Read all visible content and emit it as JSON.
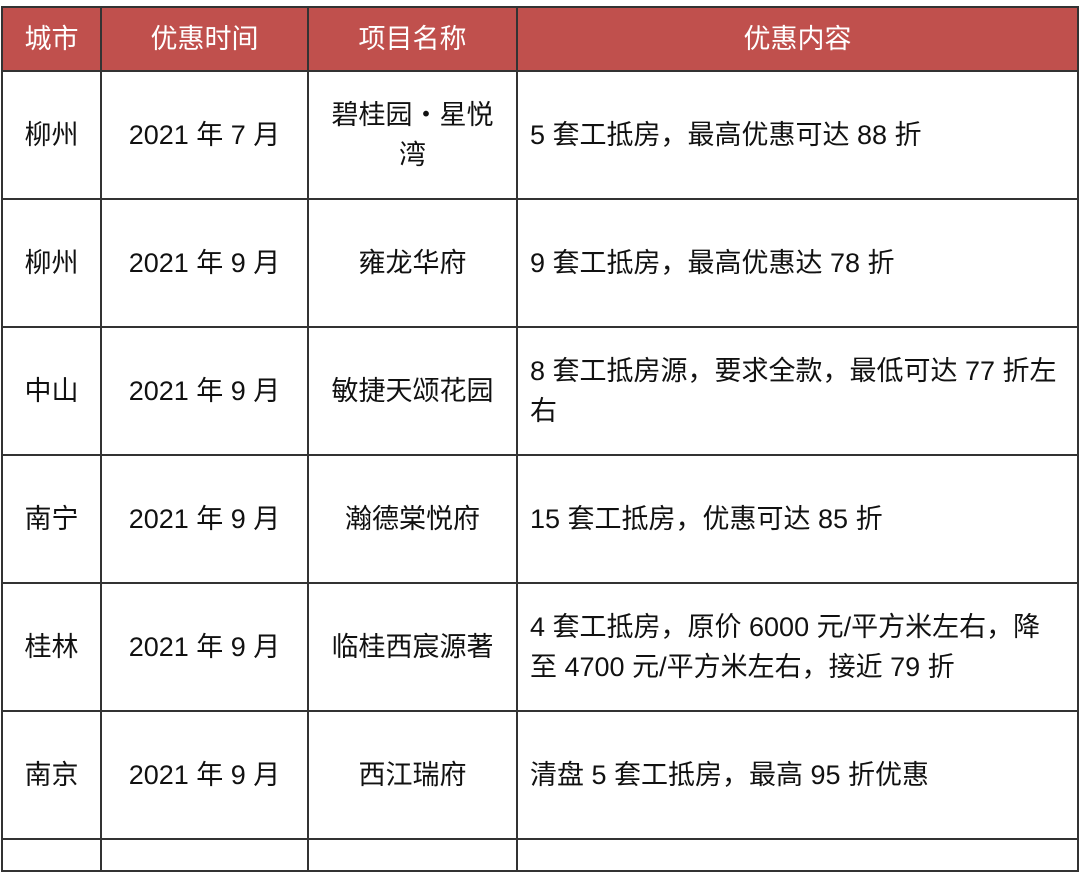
{
  "table": {
    "headers": [
      "城市",
      "优惠时间",
      "项目名称",
      "优惠内容"
    ],
    "header_color": "#c0504d",
    "rows": [
      {
        "city": "柳州",
        "time": "2021 年 7 月",
        "project": "碧桂园・星悦湾",
        "content": "5 套工抵房，最高优惠可达 88 折"
      },
      {
        "city": "柳州",
        "time": "2021 年 9 月",
        "project": "雍龙华府",
        "content": "9 套工抵房，最高优惠达 78 折"
      },
      {
        "city": "中山",
        "time": "2021 年 9 月",
        "project": "敏捷天颂花园",
        "content": "8 套工抵房源，要求全款，最低可达 77 折左右"
      },
      {
        "city": "南宁",
        "time": "2021 年 9 月",
        "project": "瀚德棠悦府",
        "content": "15 套工抵房，优惠可达 85 折"
      },
      {
        "city": "桂林",
        "time": "2021 年 9 月",
        "project": "临桂西宸源著",
        "content": "4 套工抵房，原价 6000 元/平方米左右，降至 4700 元/平方米左右，接近 79 折"
      },
      {
        "city": "南京",
        "time": "2021 年 9 月",
        "project": "西江瑞府",
        "content": "清盘 5 套工抵房，最高 95 折优惠"
      }
    ]
  }
}
